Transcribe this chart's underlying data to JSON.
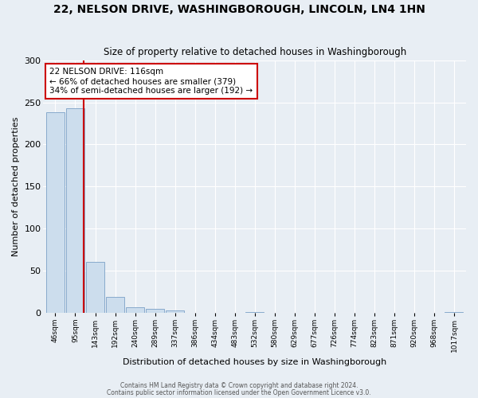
{
  "title": "22, NELSON DRIVE, WASHINGBOROUGH, LINCOLN, LN4 1HN",
  "subtitle": "Size of property relative to detached houses in Washingborough",
  "xlabel": "Distribution of detached houses by size in Washingborough",
  "ylabel": "Number of detached properties",
  "bin_labels": [
    "46sqm",
    "95sqm",
    "143sqm",
    "192sqm",
    "240sqm",
    "289sqm",
    "337sqm",
    "386sqm",
    "434sqm",
    "483sqm",
    "532sqm",
    "580sqm",
    "629sqm",
    "677sqm",
    "726sqm",
    "774sqm",
    "823sqm",
    "871sqm",
    "920sqm",
    "968sqm",
    "1017sqm"
  ],
  "bar_heights": [
    238,
    243,
    60,
    19,
    6,
    4,
    2,
    0,
    0,
    0,
    1,
    0,
    0,
    0,
    0,
    0,
    0,
    0,
    0,
    0,
    1
  ],
  "bar_color": "#ccdded",
  "bar_edge_color": "#88aacc",
  "marker_label": "22 NELSON DRIVE: 116sqm",
  "annotation_line1": "← 66% of detached houses are smaller (379)",
  "annotation_line2": "34% of semi-detached houses are larger (192) →",
  "annotation_box_color": "#ffffff",
  "annotation_box_edge": "#cc0000",
  "marker_line_color": "#cc0000",
  "ylim": [
    0,
    300
  ],
  "yticks": [
    0,
    50,
    100,
    150,
    200,
    250,
    300
  ],
  "footer1": "Contains HM Land Registry data © Crown copyright and database right 2024.",
  "footer2": "Contains public sector information licensed under the Open Government Licence v3.0.",
  "background_color": "#e8eef4",
  "grid_color": "#ffffff"
}
